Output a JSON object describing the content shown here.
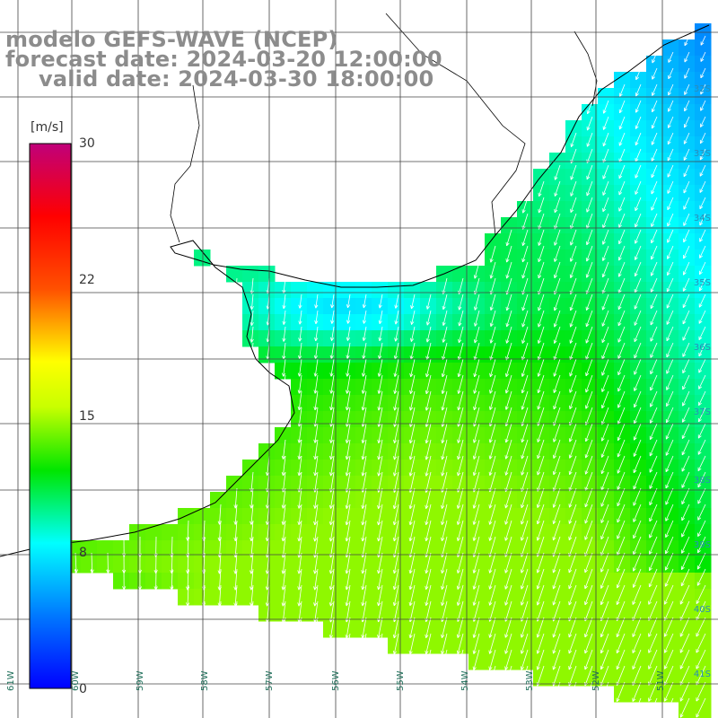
{
  "title": {
    "model": "modelo GEFS-WAVE (NCEP)",
    "forecast": "forecast date: 2024-03-20 12:00:00",
    "valid": "valid date: 2024-03-30 18:00:00"
  },
  "colorbar": {
    "unit": "[m/s]",
    "ticks": [
      "30",
      "22",
      "15",
      "8",
      "0"
    ],
    "tick_values": [
      30,
      22,
      15,
      8,
      0
    ],
    "colors": [
      "#0000ff",
      "#00a0ff",
      "#00ffff",
      "#00e000",
      "#ffff00",
      "#ff8000",
      "#ff0000",
      "#c0007a"
    ]
  },
  "axes": {
    "lat_labels": [
      "32S",
      "33S",
      "34S",
      "35S",
      "36S",
      "37S",
      "38S",
      "39S",
      "40S",
      "41S"
    ],
    "lon_labels": [
      "61W",
      "60W",
      "59W",
      "58W",
      "57W",
      "56W",
      "55W",
      "54W",
      "53W",
      "52W",
      "51W"
    ]
  },
  "colors": {
    "land": "#ffffff",
    "grid": "#444444",
    "coast": "#000000",
    "arrow": "#ffffff",
    "label": "#8c8c8c"
  }
}
